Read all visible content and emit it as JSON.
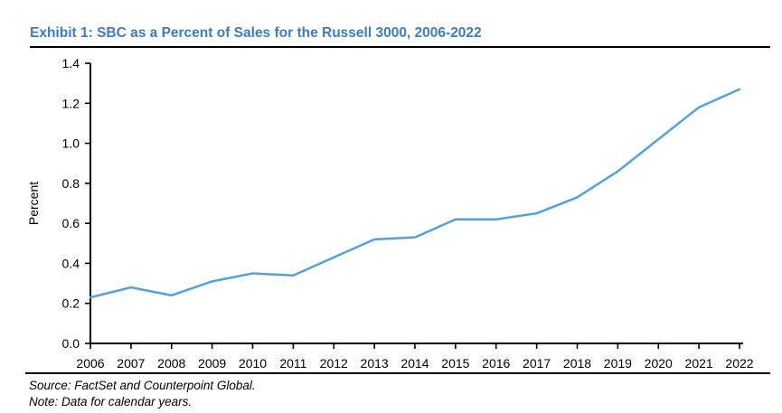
{
  "header": {
    "title": "Exhibit 1: SBC as a Percent of Sales for the Russell 3000, 2006-2022"
  },
  "footer": {
    "source": "Source: FactSet and Counterpoint Global.",
    "note": "Note: Data for calendar years."
  },
  "colors": {
    "title_blue": "#3B7DC4",
    "line_blue": "#55A1D7",
    "axis_black": "#000000"
  },
  "chart_data": {
    "type": "line",
    "title": "Exhibit 1: SBC as a Percent of Sales for the Russell 3000, 2006-2022",
    "categories": [
      "2006",
      "2007",
      "2008",
      "2009",
      "2010",
      "2011",
      "2012",
      "2013",
      "2014",
      "2015",
      "2016",
      "2017",
      "2018",
      "2019",
      "2020",
      "2021",
      "2022"
    ],
    "values": [
      0.23,
      0.28,
      0.24,
      0.31,
      0.35,
      0.34,
      0.43,
      0.52,
      0.53,
      0.62,
      0.62,
      0.65,
      0.73,
      0.86,
      1.02,
      1.18,
      1.27
    ],
    "xlabel": "",
    "ylabel": "Percent",
    "ylim": [
      0.0,
      1.4
    ],
    "ytick_step": 0.2,
    "yticks": [
      "0.0",
      "0.2",
      "0.4",
      "0.6",
      "0.8",
      "1.0",
      "1.2",
      "1.4"
    ],
    "grid": false,
    "legend": false,
    "line_color": "#55A1D7",
    "axis_color": "#000000"
  }
}
